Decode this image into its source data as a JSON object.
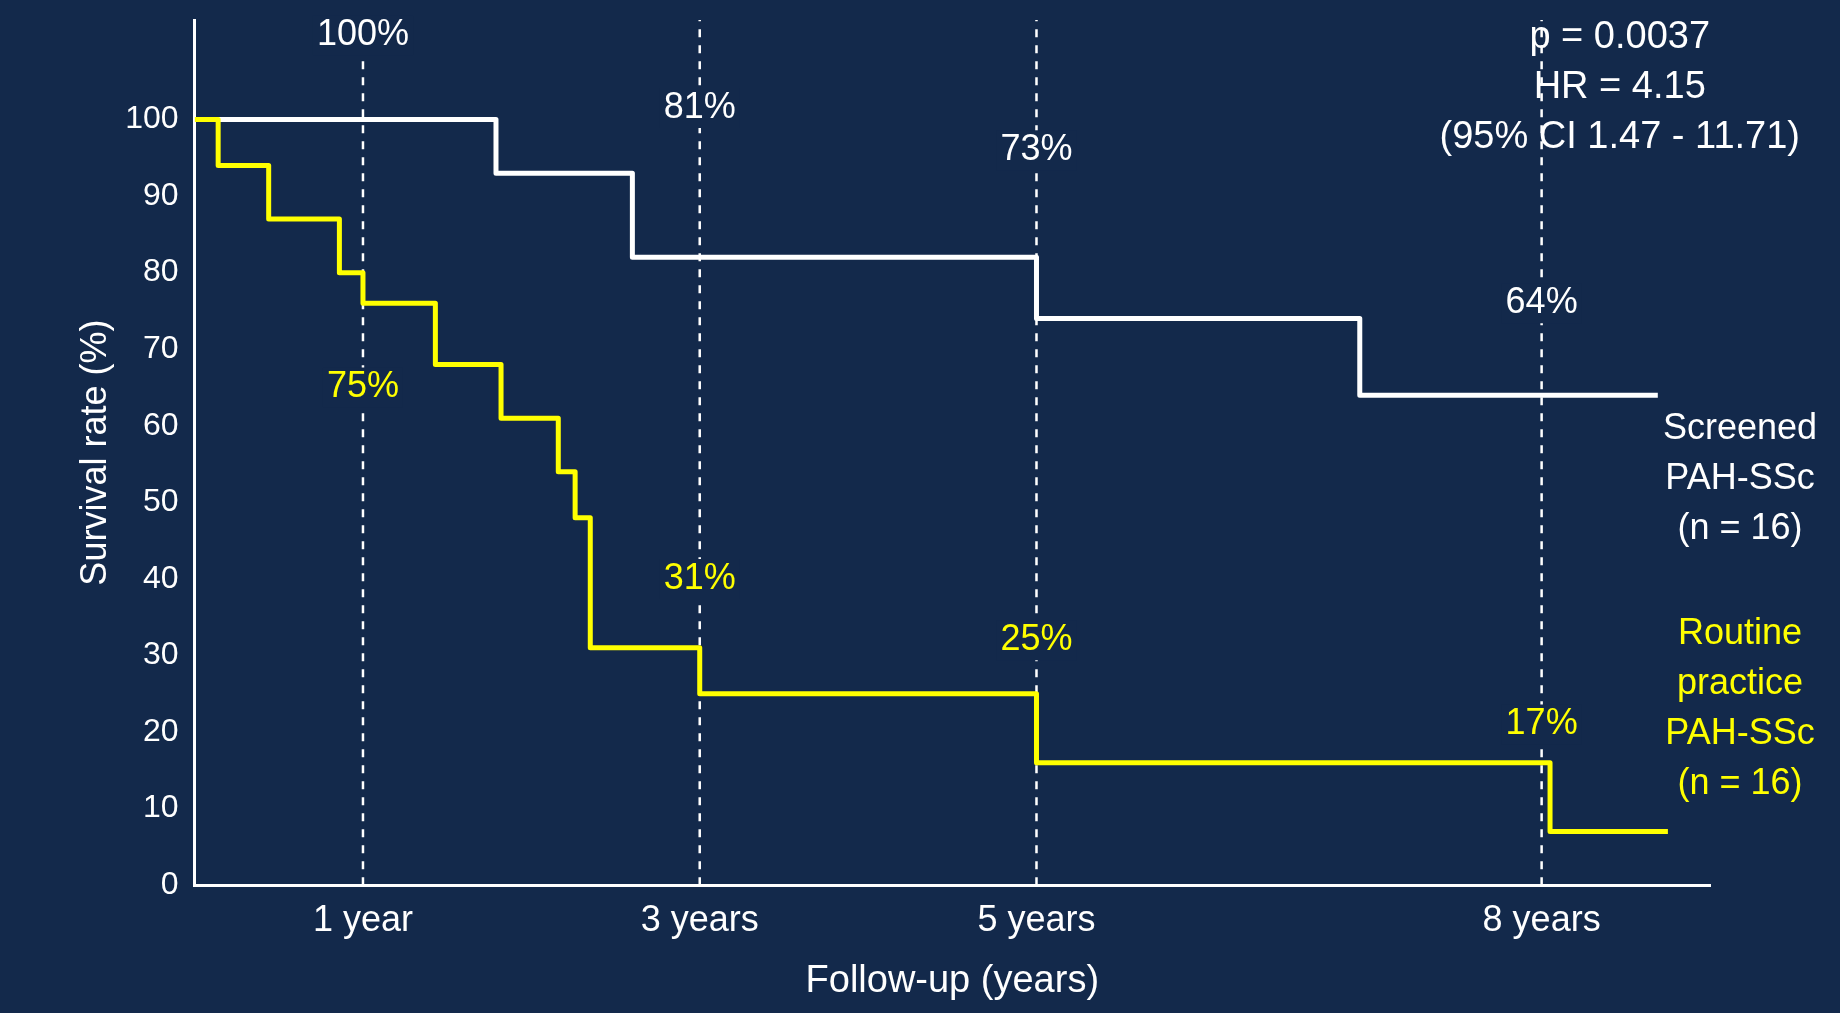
{
  "chart_data": {
    "type": "step",
    "xlabel": "Follow-up (years)",
    "ylabel": "Survival rate (%)",
    "xlim": [
      0,
      9
    ],
    "xticks": [
      {
        "value": 1,
        "label": "1 year"
      },
      {
        "value": 3,
        "label": "3 years"
      },
      {
        "value": 5,
        "label": "5 years"
      },
      {
        "value": 8,
        "label": "8 years"
      }
    ],
    "ylim": [
      0,
      113
    ],
    "yticks": [
      0,
      10,
      20,
      30,
      40,
      50,
      60,
      70,
      80,
      90,
      100
    ],
    "series": [
      {
        "name": "Screened\nPAH-SSc\n(n = 16)",
        "color": "#ffffff",
        "x": [
          0,
          1.79,
          2.6,
          5.0,
          6.92,
          8.69
        ],
        "values": [
          100,
          93,
          82,
          74,
          64,
          64
        ]
      },
      {
        "name": "Routine\npractice\nPAH-SSc\n(n = 16)",
        "color": "#ffff00",
        "x": [
          0,
          0.14,
          0.44,
          0.86,
          1.0,
          1.43,
          1.82,
          2.16,
          2.26,
          2.35,
          3.0,
          5.0,
          8.05,
          8.75
        ],
        "values": [
          100,
          94,
          87,
          80,
          76,
          68,
          61,
          54,
          48,
          31,
          25,
          16,
          7,
          7
        ]
      }
    ],
    "ref_lines": [
      {
        "axis": "x",
        "value": 1,
        "color": "#ffffff",
        "line_style": "dashed"
      },
      {
        "axis": "x",
        "value": 3,
        "color": "#ffffff",
        "line_style": "dashed"
      },
      {
        "axis": "x",
        "value": 5,
        "color": "#ffffff",
        "line_style": "dashed"
      },
      {
        "axis": "x",
        "value": 8,
        "color": "#ffffff",
        "line_style": "dashed"
      }
    ],
    "annotations": [
      "p = 0.0037",
      "HR = 4.15",
      "(95% CI 1.47 - 11.71)",
      {
        "text": "100%",
        "x": 1,
        "y": 111
      },
      {
        "text": "81%",
        "x": 3,
        "y": 101.5
      },
      {
        "text": "73%",
        "x": 5,
        "y": 96
      },
      {
        "text": "64%",
        "x": 8,
        "y": 76
      },
      {
        "text": "75%",
        "x": 1,
        "y": 65
      },
      {
        "text": "31%",
        "x": 3,
        "y": 40
      },
      {
        "text": "25%",
        "x": 5,
        "y": 32
      },
      {
        "text": "17%",
        "x": 8,
        "y": 21
      }
    ]
  }
}
